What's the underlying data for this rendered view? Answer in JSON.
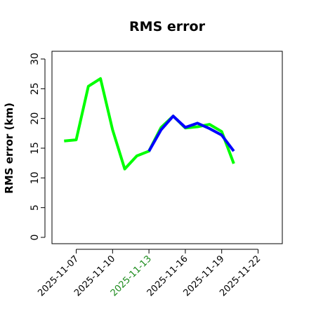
{
  "chart_data": {
    "type": "line",
    "title": "RMS error",
    "xlabel": "",
    "ylabel": "RMS error (km)",
    "ylim": [
      0,
      30
    ],
    "xlim": [
      "2025-11-05",
      "2025-11-24"
    ],
    "yticks": [
      0,
      5,
      10,
      15,
      20,
      25,
      30
    ],
    "xticks": [
      {
        "date": "2025-11-07",
        "label": "2025-11-07",
        "color": "#000000"
      },
      {
        "date": "2025-11-10",
        "label": "2025-11-10",
        "color": "#000000"
      },
      {
        "date": "2025-11-13",
        "label": "2025-11-13",
        "color": "#1a8a1a"
      },
      {
        "date": "2025-11-16",
        "label": "2025-11-16",
        "color": "#000000"
      },
      {
        "date": "2025-11-19",
        "label": "2025-11-19",
        "color": "#000000"
      },
      {
        "date": "2025-11-22",
        "label": "2025-11-22",
        "color": "#000000"
      }
    ],
    "grid": false,
    "legend": "none",
    "series": [
      {
        "color": "#00ff00",
        "points": [
          {
            "x": "2025-11-06",
            "y": 16.2
          },
          {
            "x": "2025-11-07",
            "y": 16.4
          },
          {
            "x": "2025-11-08",
            "y": 25.4
          },
          {
            "x": "2025-11-09",
            "y": 26.7
          },
          {
            "x": "2025-11-10",
            "y": 18.1
          },
          {
            "x": "2025-11-11",
            "y": 11.5
          },
          {
            "x": "2025-11-12",
            "y": 13.7
          },
          {
            "x": "2025-11-13",
            "y": 14.5
          },
          {
            "x": "2025-11-14",
            "y": 18.5
          },
          {
            "x": "2025-11-15",
            "y": 20.4
          },
          {
            "x": "2025-11-16",
            "y": 18.4
          },
          {
            "x": "2025-11-17",
            "y": 18.6
          },
          {
            "x": "2025-11-18",
            "y": 19.0
          },
          {
            "x": "2025-11-19",
            "y": 17.8
          },
          {
            "x": "2025-11-20",
            "y": 12.4
          }
        ]
      },
      {
        "color": "#0000ff",
        "points": [
          {
            "x": "2025-11-13",
            "y": 14.5
          },
          {
            "x": "2025-11-14",
            "y": 18.1
          },
          {
            "x": "2025-11-15",
            "y": 20.4
          },
          {
            "x": "2025-11-16",
            "y": 18.5
          },
          {
            "x": "2025-11-17",
            "y": 19.2
          },
          {
            "x": "2025-11-18",
            "y": 18.3
          },
          {
            "x": "2025-11-19",
            "y": 17.2
          },
          {
            "x": "2025-11-20",
            "y": 14.5
          }
        ]
      }
    ]
  }
}
